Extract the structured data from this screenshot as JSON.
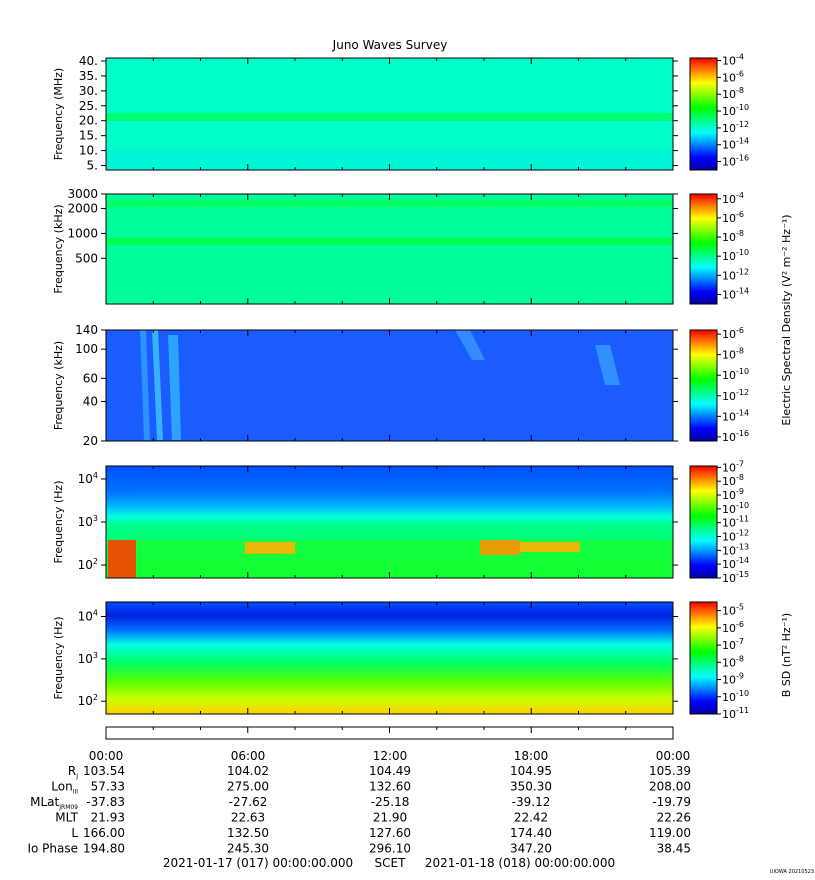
{
  "figure": {
    "title": "Juno Waves Survey",
    "cbar_shared_label": "Electric Spectral Density (V² m⁻² Hz⁻¹)",
    "cbar_bsd_label": "B SD (nT² Hz⁻¹)",
    "scet_start": "2021-01-17 (017) 00:00:00.000",
    "scet_label": "SCET",
    "scet_end": "2021-01-18 (018) 00:00:00.000",
    "credit": "UIOWA 20210523"
  },
  "colormap": [
    "#0000a0",
    "#0000ff",
    "#0080ff",
    "#00ffff",
    "#00ff80",
    "#00ff00",
    "#80ff00",
    "#ffff00",
    "#ff8000",
    "#ff0000"
  ],
  "ephemeris": {
    "time_labels": [
      "00:00",
      "06:00",
      "12:00",
      "18:00",
      "00:00"
    ],
    "rows": [
      {
        "label": "R",
        "sub": "J",
        "values": [
          "103.54",
          "104.02",
          "104.49",
          "104.95",
          "105.39"
        ]
      },
      {
        "label": "Lon",
        "sub": "III",
        "values": [
          "57.33",
          "275.00",
          "132.60",
          "350.30",
          "208.00"
        ]
      },
      {
        "label": "MLat",
        "sub": "JRM09",
        "values": [
          "-37.83",
          "-27.62",
          "-25.18",
          "-39.12",
          "-19.79"
        ]
      },
      {
        "label": "MLT",
        "sub": "",
        "values": [
          "21.93",
          "22.63",
          "21.90",
          "22.42",
          "22.26"
        ]
      },
      {
        "label": "L",
        "sub": "",
        "values": [
          "166.00",
          "132.50",
          "127.60",
          "174.40",
          "119.00"
        ]
      },
      {
        "label": "Io Phase",
        "sub": "",
        "values": [
          "194.80",
          "245.30",
          "296.10",
          "347.20",
          "38.45"
        ]
      }
    ]
  },
  "chart_data": [
    {
      "type": "heatmap",
      "title": "Juno Waves Survey",
      "ylabel": "Frequency (MHz)",
      "yscale": "linear",
      "ylim": [
        3.5,
        41
      ],
      "yticks": [
        5,
        10,
        15,
        20,
        25,
        30,
        35,
        40
      ],
      "ytick_labels": [
        "5.",
        "10.",
        "15.",
        "20.",
        "25.",
        "30.",
        "35.",
        "40."
      ],
      "colorbar": {
        "ticks": [
          "10-4",
          "10-6",
          "10-8",
          "10-10",
          "10-12",
          "10-14",
          "10-16"
        ],
        "range_exp": [
          -17,
          -3.7
        ]
      },
      "background_level": -12.8,
      "bands": [
        {
          "from": 20.5,
          "to": 22.0,
          "level": -10.8
        }
      ]
    },
    {
      "type": "heatmap",
      "ylabel": "Frequency (kHz)",
      "yscale": "log",
      "ylim": [
        140,
        3000
      ],
      "yticks": [
        500,
        1000,
        2000,
        3000
      ],
      "ytick_labels": [
        "500",
        "1000",
        "2000",
        "3000"
      ],
      "colorbar": {
        "ticks": [
          "10-4",
          "10-6",
          "10-8",
          "10-10",
          "10-12",
          "10-14"
        ],
        "range_exp": [
          -15,
          -3.5
        ]
      },
      "background_level": -11.8,
      "bands": [
        {
          "from": 760,
          "to": 860,
          "level": -10.5
        },
        {
          "from": 2150,
          "to": 2450,
          "level": -10.6
        }
      ]
    },
    {
      "type": "heatmap",
      "ylabel": "Frequency (kHz)",
      "yscale": "log",
      "ylim": [
        20,
        140
      ],
      "yticks": [
        20,
        40,
        60,
        100,
        140
      ],
      "ytick_labels": [
        "20",
        "40",
        "60",
        "100",
        "140"
      ],
      "colorbar": {
        "ticks": [
          "10-6",
          "10-8",
          "10-10",
          "10-12",
          "10-14",
          "10-16"
        ],
        "range_exp": [
          -16.4,
          -5.6
        ]
      },
      "background_level": -14.6
    },
    {
      "type": "heatmap",
      "ylabel": "Frequency (Hz)",
      "yscale": "log",
      "ylim": [
        50,
        20000
      ],
      "yticks": [
        100,
        1000,
        10000
      ],
      "ytick_labels": [
        "10^2",
        "10^3",
        "10^4"
      ],
      "colorbar": {
        "ticks": [
          "10-7",
          "10-8",
          "10-9",
          "10-10",
          "10-11",
          "10-12",
          "10-13",
          "10-14",
          "10-15"
        ],
        "range_exp": [
          -15,
          -6.9
        ]
      },
      "background_level": -11.5
    },
    {
      "type": "heatmap",
      "ylabel": "Frequency (Hz)",
      "yscale": "log",
      "ylim": [
        50,
        22000
      ],
      "yticks": [
        100,
        1000,
        10000
      ],
      "ytick_labels": [
        "10^2",
        "10^3",
        "10^4"
      ],
      "colorbar": {
        "ticks": [
          "10-5",
          "10-6",
          "10-7",
          "10-8",
          "10-9",
          "10-10",
          "10-11"
        ],
        "range_exp": [
          -11,
          -4.5
        ]
      },
      "background_level": -7.5
    }
  ]
}
